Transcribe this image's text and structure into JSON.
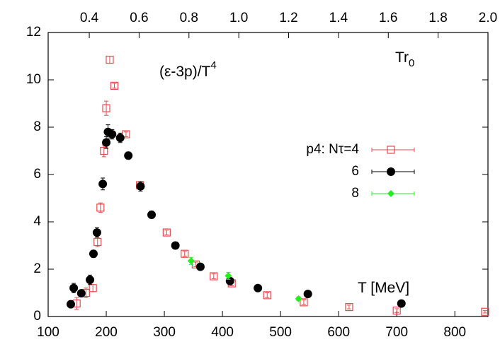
{
  "chart_data": {
    "type": "scatter",
    "xlim": [
      100,
      857
    ],
    "xticks": [
      100,
      200,
      300,
      400,
      500,
      600,
      700,
      800
    ],
    "x2lim": [
      0.235,
      2.0
    ],
    "x2ticks": [
      0.4,
      0.6,
      0.8,
      {
        "value": 1,
        "label": "1.0"
      },
      1.2,
      1.4,
      1.6,
      1.8,
      {
        "value": 2,
        "label": "2.0"
      }
    ],
    "ylim": [
      0,
      12
    ],
    "yticks": [
      0,
      2,
      4,
      6,
      8,
      10,
      12
    ],
    "grid": false,
    "legend": "right",
    "annotations": [
      {
        "text": "(ε-3p)/T",
        "sup": "4"
      },
      {
        "text": "Tr",
        "sub": "0"
      },
      {
        "text": "T [MeV]"
      }
    ],
    "series": [
      {
        "name": "p4: Nτ=4",
        "color": "#e8494a",
        "marker": "square",
        "x": [
          149,
          165,
          177,
          185,
          190,
          196,
          200,
          206,
          214,
          234,
          258,
          304,
          335,
          354,
          385,
          416,
          477,
          540,
          618,
          700,
          852
        ],
        "values": [
          0.55,
          1.0,
          1.2,
          3.15,
          4.6,
          7.0,
          8.8,
          10.85,
          9.75,
          7.7,
          5.55,
          3.55,
          2.65,
          2.2,
          1.7,
          1.4,
          0.9,
          0.6,
          0.4,
          0.25,
          0.2
        ],
        "errors": [
          0.25,
          0.2,
          0.15,
          0.2,
          0.2,
          0.25,
          0.3,
          0.15,
          0.1,
          0.1,
          0.1,
          0.1,
          0.1,
          0.1,
          0.1,
          0.1,
          0.1,
          0.1,
          0.08,
          0.08,
          0.05
        ]
      },
      {
        "name": "6",
        "color": "#000000",
        "marker": "circle",
        "x": [
          139,
          144,
          157,
          172,
          178,
          184,
          194,
          200,
          203,
          210,
          224,
          238,
          259,
          278,
          319,
          362,
          413,
          461,
          547,
          708
        ],
        "values": [
          0.52,
          1.2,
          0.98,
          1.55,
          2.65,
          3.55,
          5.6,
          7.35,
          7.8,
          7.7,
          7.55,
          6.8,
          5.5,
          4.3,
          3.0,
          2.1,
          1.5,
          1.2,
          0.95,
          0.55
        ],
        "errors": [
          0.15,
          0.2,
          0.1,
          0.2,
          0.15,
          0.2,
          0.25,
          0.25,
          0.3,
          0.2,
          0.2,
          0.15,
          0.2,
          0.15,
          0.15,
          0.1,
          0.1,
          0.05,
          0.05,
          0.05
        ]
      },
      {
        "name": "8",
        "color": "#22ee22",
        "marker": "diamond",
        "x": [
          346,
          410,
          531
        ],
        "values": [
          2.35,
          1.72,
          0.75
        ],
        "errors": [
          0.15,
          0.15,
          0.08
        ]
      }
    ]
  }
}
